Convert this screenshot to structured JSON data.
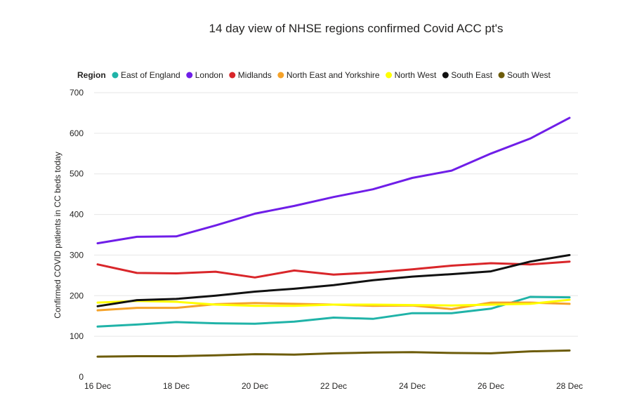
{
  "chart_data": {
    "type": "line",
    "title": "14 day view of NHSE regions confirmed Covid ACC pt's",
    "xlabel": "",
    "ylabel": "Confirmed COVID patients in CC beds today",
    "legend_title": "Region",
    "legend_position": "top",
    "grid": true,
    "ylim": [
      0,
      700
    ],
    "yticks": [
      0,
      100,
      200,
      300,
      400,
      500,
      600,
      700
    ],
    "x": [
      "16 Dec",
      "17 Dec",
      "18 Dec",
      "19 Dec",
      "20 Dec",
      "21 Dec",
      "22 Dec",
      "23 Dec",
      "24 Dec",
      "25 Dec",
      "26 Dec",
      "27 Dec",
      "28 Dec"
    ],
    "xtick_labels": [
      "16 Dec",
      "18 Dec",
      "20 Dec",
      "22 Dec",
      "24 Dec",
      "26 Dec",
      "28 Dec"
    ],
    "series": [
      {
        "name": "East of England",
        "color": "#20b3a8",
        "values": [
          124,
          129,
          135,
          132,
          131,
          136,
          146,
          143,
          157,
          157,
          168,
          197,
          196
        ]
      },
      {
        "name": "London",
        "color": "#6f1ee8",
        "values": [
          329,
          345,
          346,
          373,
          402,
          421,
          443,
          462,
          490,
          508,
          550,
          587,
          638
        ]
      },
      {
        "name": "Midlands",
        "color": "#d9262a",
        "values": [
          277,
          256,
          255,
          259,
          245,
          262,
          252,
          257,
          265,
          274,
          280,
          277,
          284
        ]
      },
      {
        "name": "North East and Yorkshire",
        "color": "#f5a229",
        "values": [
          164,
          170,
          170,
          179,
          182,
          180,
          178,
          175,
          176,
          167,
          183,
          183,
          180
        ]
      },
      {
        "name": "North West",
        "color": "#ffff00",
        "values": [
          183,
          187,
          185,
          178,
          175,
          175,
          178,
          178,
          177,
          176,
          178,
          180,
          190
        ]
      },
      {
        "name": "South East",
        "color": "#111111",
        "values": [
          174,
          189,
          192,
          200,
          210,
          217,
          226,
          238,
          247,
          253,
          260,
          284,
          300
        ]
      },
      {
        "name": "South West",
        "color": "#6d5c0a",
        "values": [
          50,
          51,
          51,
          53,
          56,
          55,
          58,
          60,
          61,
          59,
          58,
          63,
          65
        ]
      }
    ]
  }
}
